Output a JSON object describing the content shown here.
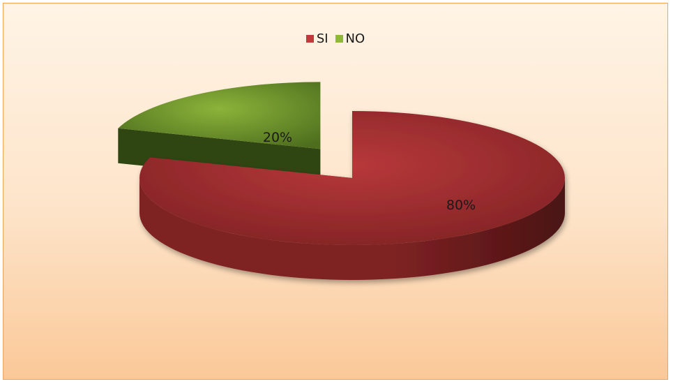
{
  "chart_data": {
    "type": "pie",
    "style": "3d-exploded",
    "categories": [
      "SI",
      "NO"
    ],
    "values": [
      80,
      20
    ],
    "data_labels": [
      "80%",
      "20%"
    ],
    "colors": {
      "SI": {
        "top": "#b8383a",
        "side": "#7e2224",
        "shade": "#4a1212"
      },
      "NO": {
        "top": "#8cb33a",
        "side": "#4e6e1e",
        "shade": "#2f4512"
      }
    },
    "legend_position": "top",
    "background": "#fde4c9",
    "border_color": "#f2a35c"
  },
  "legend": {
    "items": [
      {
        "label": "SI",
        "color": "#c0393b"
      },
      {
        "label": "NO",
        "color": "#8fb83a"
      }
    ]
  }
}
